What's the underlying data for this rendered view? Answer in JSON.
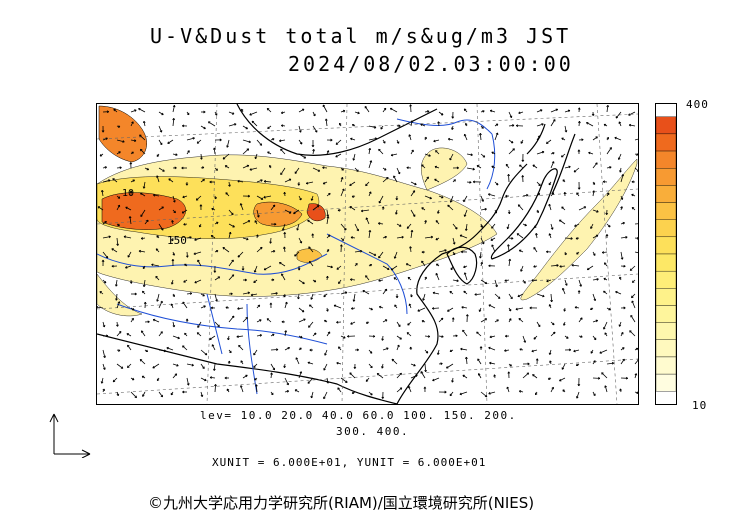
{
  "title": {
    "line1": "U-V&Dust total m/s&ug/m3 JST",
    "line2": "2024/08/02.03:00:00"
  },
  "colorbar": {
    "max_label": "400",
    "min_label": "10",
    "colors": [
      "#e8501a",
      "#ef6a1e",
      "#f4862a",
      "#f79a32",
      "#f9ae3a",
      "#fbc244",
      "#fcd24e",
      "#fde05a",
      "#fde866",
      "#feee78",
      "#fef28a",
      "#fef59c",
      "#fef7ad",
      "#fff9be",
      "#fffbcf",
      "#fffde0"
    ]
  },
  "levels": {
    "line1": "lev= 10.0 20.0 40.0 60.0 100. 150. 200.",
    "line2": "300. 400."
  },
  "contour_labels": {
    "label_150": "150",
    "label_10": "10"
  },
  "units": "XUNIT = 6.000E+01, YUNIT = 6.000E+01",
  "copyright": "©九州大学応用力学研究所(RIAM)/国立環境研究所(NIES)"
}
